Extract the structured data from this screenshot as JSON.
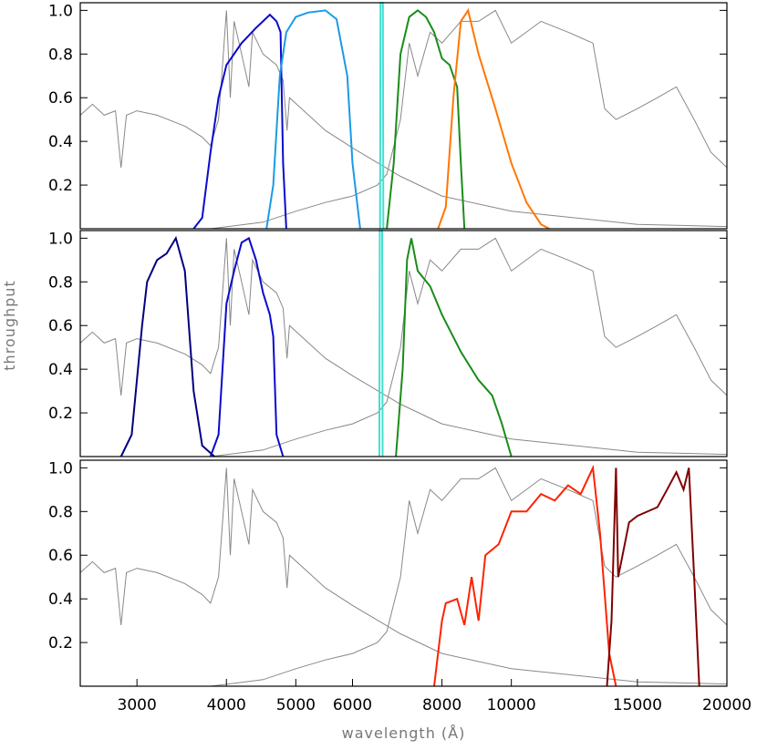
{
  "chart_data": [
    {
      "type": "line",
      "xlim": [
        2500,
        20000
      ],
      "ylim": [
        0,
        1.035
      ],
      "log_x": true,
      "yticks": [
        0.2,
        0.4,
        0.6,
        0.8,
        {
          "value": 1,
          "label": "1.0"
        }
      ],
      "series": [
        {
          "color": "#888888",
          "x": [
            2500,
            2600,
            2700,
            2800,
            2850,
            2900,
            3000,
            3200,
            3500,
            3700,
            3800,
            3900,
            3950,
            4000,
            4050,
            4100,
            4200,
            4300,
            4350,
            4500,
            4700,
            4800,
            4860,
            4900,
            5500,
            6000,
            7000,
            8000,
            10000,
            15000,
            20000
          ],
          "values": [
            0.52,
            0.57,
            0.52,
            0.54,
            0.28,
            0.52,
            0.54,
            0.52,
            0.47,
            0.42,
            0.38,
            0.5,
            0.75,
            1.0,
            0.6,
            0.95,
            0.8,
            0.65,
            0.9,
            0.8,
            0.75,
            0.68,
            0.45,
            0.6,
            0.45,
            0.37,
            0.24,
            0.15,
            0.08,
            0.02,
            0.01
          ]
        },
        {
          "color": "#888888",
          "x": [
            3800,
            4500,
            5000,
            5500,
            6000,
            6500,
            6700,
            7000,
            7200,
            7400,
            7700,
            8000,
            8500,
            9000,
            9500,
            10000,
            11000,
            12000,
            13000,
            13500,
            14000,
            15000,
            16000,
            17000,
            18000,
            19000,
            20000
          ],
          "values": [
            0,
            0.03,
            0.08,
            0.12,
            0.15,
            0.2,
            0.25,
            0.5,
            0.85,
            0.7,
            0.9,
            0.85,
            0.95,
            0.95,
            1.0,
            0.85,
            0.95,
            0.9,
            0.85,
            0.55,
            0.5,
            0.55,
            0.6,
            0.65,
            0.5,
            0.35,
            0.28
          ]
        },
        {
          "color": "#0a0acc",
          "x": [
            3600,
            3700,
            3800,
            3900,
            4000,
            4200,
            4400,
            4600,
            4700,
            4760,
            4800,
            4850
          ],
          "values": [
            0,
            0.05,
            0.35,
            0.6,
            0.75,
            0.85,
            0.92,
            0.98,
            0.95,
            0.9,
            0.3,
            0
          ]
        },
        {
          "color": "#1a9be6",
          "x": [
            4550,
            4650,
            4750,
            4850,
            5000,
            5200,
            5500,
            5700,
            5900,
            6000,
            6150
          ],
          "values": [
            0,
            0.2,
            0.7,
            0.9,
            0.97,
            0.99,
            1.0,
            0.96,
            0.7,
            0.3,
            0
          ]
        },
        {
          "color": "#40e0d0",
          "x": [
            6555,
            6565,
            6615,
            6625
          ],
          "values": [
            0,
            1.035,
            1.035,
            0
          ]
        },
        {
          "color": "#1a8c1a",
          "x": [
            6700,
            6850,
            7000,
            7200,
            7400,
            7600,
            7800,
            8000,
            8200,
            8400,
            8500,
            8600
          ],
          "values": [
            0,
            0.3,
            0.8,
            0.97,
            1.0,
            0.97,
            0.9,
            0.78,
            0.75,
            0.65,
            0.3,
            0
          ]
        },
        {
          "color": "#ff7700",
          "x": [
            7900,
            8100,
            8300,
            8500,
            8700,
            9000,
            9500,
            10000,
            10500,
            11000,
            11300
          ],
          "values": [
            0,
            0.1,
            0.6,
            0.95,
            1.0,
            0.8,
            0.55,
            0.3,
            0.12,
            0.02,
            0
          ]
        }
      ]
    },
    {
      "type": "line",
      "xlim": [
        2500,
        20000
      ],
      "ylim": [
        0,
        1.035
      ],
      "log_x": true,
      "ylabel": "throughput",
      "yticks": [
        0.2,
        0.4,
        0.6,
        0.8,
        {
          "value": 1,
          "label": "1.0"
        }
      ],
      "series": [
        {
          "color": "#888888",
          "x": [
            2500,
            2600,
            2700,
            2800,
            2850,
            2900,
            3000,
            3200,
            3500,
            3700,
            3800,
            3900,
            3950,
            4000,
            4050,
            4100,
            4200,
            4300,
            4350,
            4500,
            4700,
            4800,
            4860,
            4900,
            5500,
            6000,
            7000,
            8000,
            10000,
            15000,
            20000
          ],
          "values": [
            0.52,
            0.57,
            0.52,
            0.54,
            0.28,
            0.52,
            0.54,
            0.52,
            0.47,
            0.42,
            0.38,
            0.5,
            0.75,
            1.0,
            0.6,
            0.95,
            0.8,
            0.65,
            0.9,
            0.8,
            0.75,
            0.68,
            0.45,
            0.6,
            0.45,
            0.37,
            0.24,
            0.15,
            0.08,
            0.02,
            0.01
          ]
        },
        {
          "color": "#888888",
          "x": [
            3800,
            4500,
            5000,
            5500,
            6000,
            6500,
            6700,
            7000,
            7200,
            7400,
            7700,
            8000,
            8500,
            9000,
            9500,
            10000,
            11000,
            12000,
            13000,
            13500,
            14000,
            15000,
            16000,
            17000,
            18000,
            19000,
            20000
          ],
          "values": [
            0,
            0.03,
            0.08,
            0.12,
            0.15,
            0.2,
            0.25,
            0.5,
            0.85,
            0.7,
            0.9,
            0.85,
            0.95,
            0.95,
            1.0,
            0.85,
            0.95,
            0.9,
            0.85,
            0.55,
            0.5,
            0.55,
            0.6,
            0.65,
            0.5,
            0.35,
            0.28
          ]
        },
        {
          "color": "#000080",
          "x": [
            2850,
            2950,
            3050,
            3100,
            3200,
            3300,
            3400,
            3500,
            3600,
            3700,
            3850
          ],
          "values": [
            0,
            0.1,
            0.6,
            0.8,
            0.9,
            0.93,
            1.0,
            0.85,
            0.3,
            0.05,
            0
          ]
        },
        {
          "color": "#0a0acc",
          "x": [
            3800,
            3900,
            4000,
            4100,
            4200,
            4300,
            4400,
            4500,
            4600,
            4650,
            4700,
            4800
          ],
          "values": [
            0,
            0.1,
            0.7,
            0.85,
            0.98,
            1.0,
            0.9,
            0.75,
            0.65,
            0.55,
            0.1,
            0
          ]
        },
        {
          "color": "#40e0d0",
          "x": [
            6540,
            6550,
            6600,
            6610
          ],
          "values": [
            0,
            1.035,
            1.035,
            0
          ]
        },
        {
          "color": "#1a8c1a",
          "x": [
            6900,
            7050,
            7150,
            7250,
            7400,
            7700,
            8000,
            8500,
            9000,
            9400,
            9700,
            10000
          ],
          "values": [
            0,
            0.4,
            0.9,
            1.0,
            0.85,
            0.78,
            0.65,
            0.48,
            0.35,
            0.28,
            0.15,
            0
          ]
        }
      ]
    },
    {
      "type": "line",
      "xlim": [
        2500,
        20000
      ],
      "ylim": [
        0,
        1.035
      ],
      "log_x": true,
      "xlabel": "wavelength (Å)",
      "xticks": [
        3000,
        4000,
        5000,
        6000,
        8000,
        10000,
        15000,
        20000
      ],
      "yticks": [
        0.2,
        0.4,
        0.6,
        0.8,
        {
          "value": 1,
          "label": "1.0"
        }
      ],
      "series": [
        {
          "color": "#888888",
          "x": [
            2500,
            2600,
            2700,
            2800,
            2850,
            2900,
            3000,
            3200,
            3500,
            3700,
            3800,
            3900,
            3950,
            4000,
            4050,
            4100,
            4200,
            4300,
            4350,
            4500,
            4700,
            4800,
            4860,
            4900,
            5500,
            6000,
            7000,
            8000,
            10000,
            15000,
            20000
          ],
          "values": [
            0.52,
            0.57,
            0.52,
            0.54,
            0.28,
            0.52,
            0.54,
            0.52,
            0.47,
            0.42,
            0.38,
            0.5,
            0.75,
            1.0,
            0.6,
            0.95,
            0.8,
            0.65,
            0.9,
            0.8,
            0.75,
            0.68,
            0.45,
            0.6,
            0.45,
            0.37,
            0.24,
            0.15,
            0.08,
            0.02,
            0.01
          ]
        },
        {
          "color": "#888888",
          "x": [
            3800,
            4500,
            5000,
            5500,
            6000,
            6500,
            6700,
            7000,
            7200,
            7400,
            7700,
            8000,
            8500,
            9000,
            9500,
            10000,
            11000,
            12000,
            13000,
            13500,
            14000,
            15000,
            16000,
            17000,
            18000,
            19000,
            20000
          ],
          "values": [
            0,
            0.03,
            0.08,
            0.12,
            0.15,
            0.2,
            0.25,
            0.5,
            0.85,
            0.7,
            0.9,
            0.85,
            0.95,
            0.95,
            1.0,
            0.85,
            0.95,
            0.9,
            0.85,
            0.55,
            0.5,
            0.55,
            0.6,
            0.65,
            0.5,
            0.35,
            0.28
          ]
        },
        {
          "color": "#ff2200",
          "x": [
            7800,
            8000,
            8100,
            8400,
            8600,
            8800,
            9000,
            9200,
            9600,
            10000,
            10500,
            11000,
            11500,
            12000,
            12500,
            13000,
            13300,
            13700,
            14000
          ],
          "values": [
            0,
            0.3,
            0.38,
            0.4,
            0.28,
            0.5,
            0.3,
            0.6,
            0.65,
            0.8,
            0.8,
            0.88,
            0.85,
            0.92,
            0.88,
            1.0,
            0.7,
            0.15,
            0
          ]
        },
        {
          "color": "#800000",
          "x": [
            13600,
            13800,
            14000,
            14100,
            14300,
            14600,
            15000,
            16000,
            16500,
            17000,
            17400,
            17700,
            18000,
            18300
          ],
          "values": [
            0,
            0.3,
            1.0,
            0.5,
            0.6,
            0.75,
            0.78,
            0.82,
            0.9,
            0.98,
            0.9,
            1.0,
            0.5,
            0
          ]
        }
      ]
    }
  ]
}
